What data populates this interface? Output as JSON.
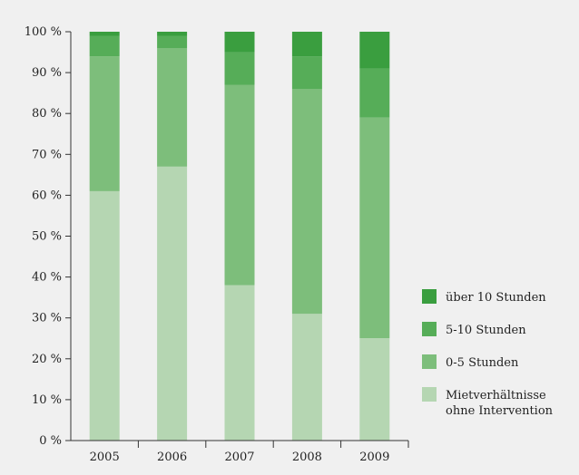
{
  "chart_data": {
    "type": "bar",
    "stacked": true,
    "categories": [
      "2005",
      "2006",
      "2007",
      "2008",
      "2009"
    ],
    "series": [
      {
        "name": "Mietverhältnisse ohne Intervention",
        "color": "#b5d6b2",
        "values": [
          61,
          67,
          38,
          31,
          25
        ]
      },
      {
        "name": "0-5 Stunden",
        "color": "#7dbe7b",
        "values": [
          33,
          29,
          49,
          55,
          54
        ]
      },
      {
        "name": "5-10 Stunden",
        "color": "#56ad58",
        "values": [
          5,
          3,
          8,
          8,
          12
        ]
      },
      {
        "name": "über 10 Stunden",
        "color": "#3a9e3f",
        "values": [
          1,
          1,
          5,
          6,
          9
        ]
      }
    ],
    "y_ticks": [
      "0 %",
      "10 %",
      "20 %",
      "30 %",
      "40 %",
      "50 %",
      "60 %",
      "70 %",
      "80 %",
      "90 %",
      "100 %"
    ],
    "ylim": [
      0,
      100
    ],
    "title": "",
    "xlabel": "",
    "ylabel": "",
    "grid": false,
    "legend_position": "right",
    "legend_order": [
      "über 10 Stunden",
      "5-10 Stunden",
      "0-5 Stunden",
      "Mietverhältnisse ohne Intervention"
    ],
    "legend_lines": {
      "über 10 Stunden": [
        "über 10 Stunden"
      ],
      "5-10 Stunden": [
        "5-10 Stunden"
      ],
      "0-5 Stunden": [
        "0-5 Stunden"
      ],
      "Mietverhältnisse ohne Intervention": [
        "Mietverhältnisse",
        "ohne Intervention"
      ]
    },
    "background_color": "#f0f0f0",
    "axis_color": "#333333"
  }
}
